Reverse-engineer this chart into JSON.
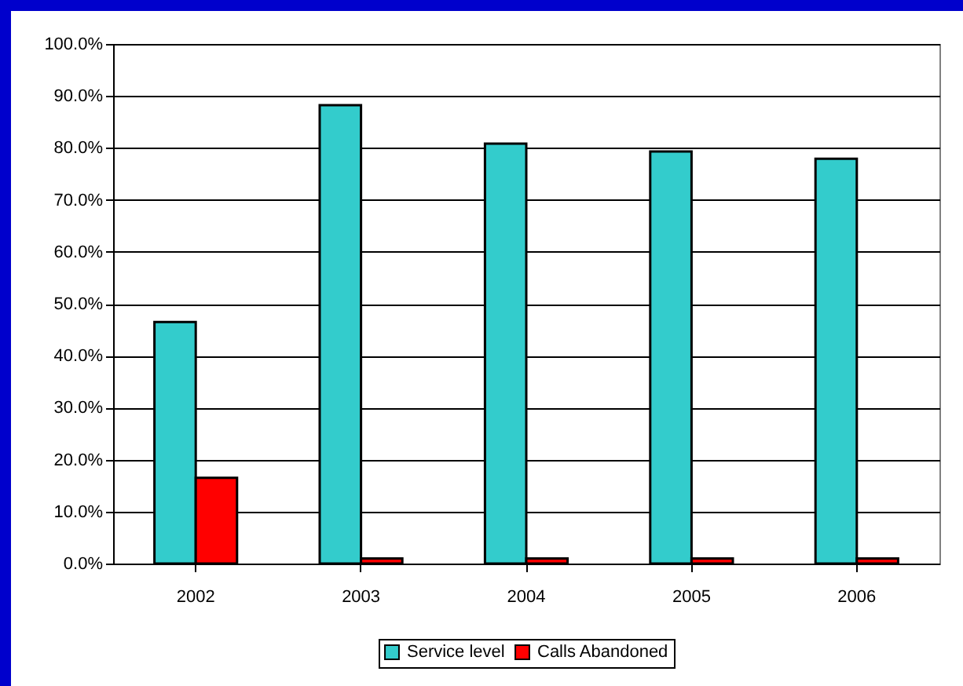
{
  "chart_data": {
    "type": "bar",
    "categories": [
      "2002",
      "2003",
      "2004",
      "2005",
      "2006"
    ],
    "series": [
      {
        "name": "Service level",
        "color": "#33cccc",
        "values": [
          46.5,
          88.2,
          80.8,
          79.3,
          77.9
        ]
      },
      {
        "name": "Calls Abandoned",
        "color": "#ff0000",
        "values": [
          16.5,
          1,
          1,
          1,
          1
        ]
      }
    ],
    "ylim": [
      0,
      100
    ],
    "yticks": [
      {
        "value": 0,
        "label": "0.0%"
      },
      {
        "value": 10,
        "label": "10.0%"
      },
      {
        "value": 20,
        "label": "20.0%"
      },
      {
        "value": 30,
        "label": "30.0%"
      },
      {
        "value": 40,
        "label": "40.0%"
      },
      {
        "value": 50,
        "label": "50.0%"
      },
      {
        "value": 60,
        "label": "60.0%"
      },
      {
        "value": 70,
        "label": "70.0%"
      },
      {
        "value": 80,
        "label": "80.0%"
      },
      {
        "value": 90,
        "label": "90.0%"
      },
      {
        "value": 100,
        "label": "100.0%"
      }
    ],
    "grid": "y",
    "legend": "bottom"
  }
}
